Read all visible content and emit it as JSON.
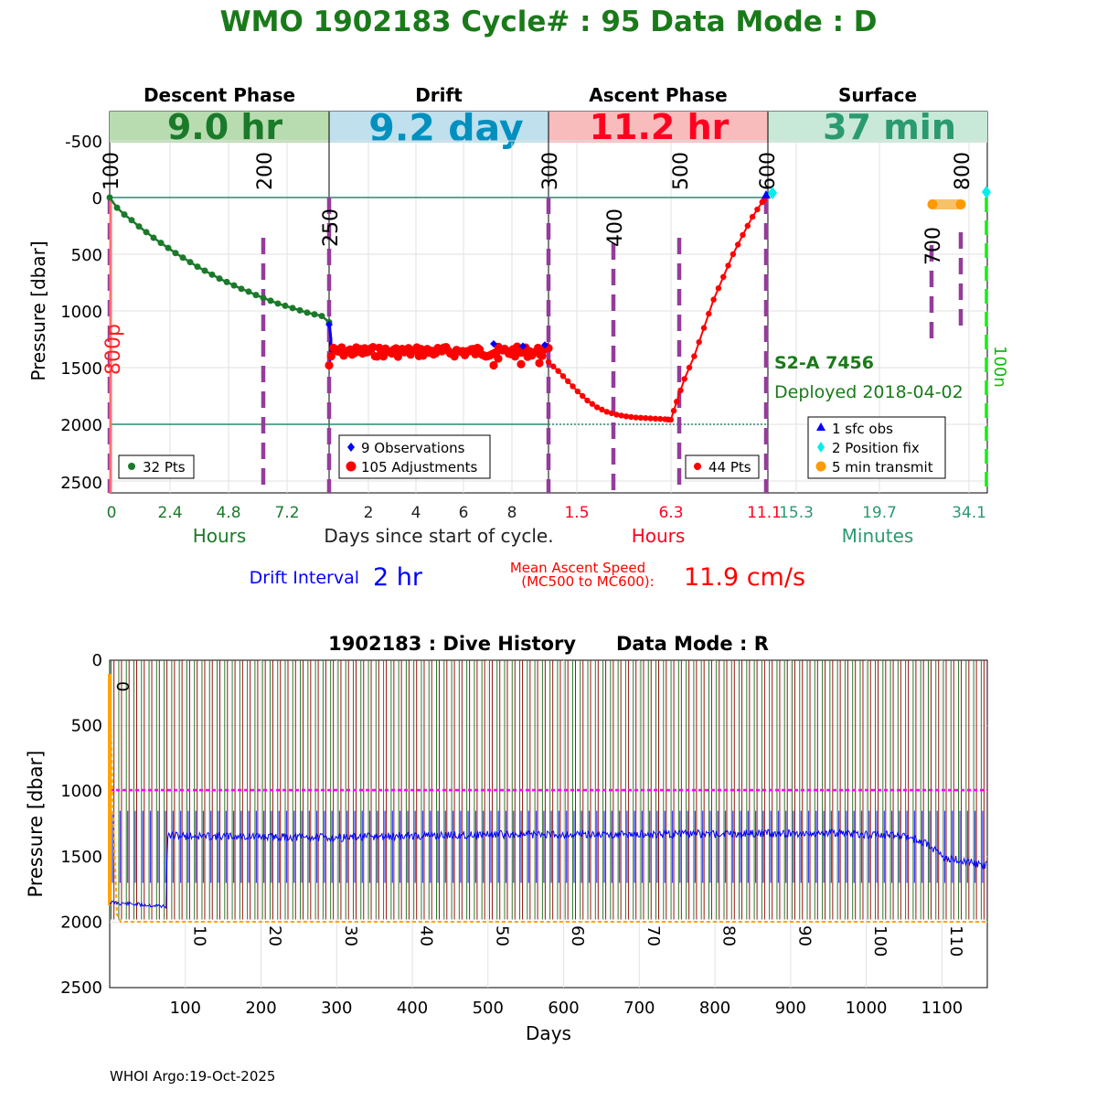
{
  "title": "WMO 1902183   Cycle# : 95   Data Mode : D",
  "footer": "WHOI Argo:19-Oct-2025",
  "colors": {
    "title": "#1a7a1a",
    "descent": "#1a7a2a",
    "drift": "#0000ff",
    "adjust": "#ff0000",
    "ascent": "#ff0000",
    "minutes": "#2a9a70",
    "marker": "#943c9c",
    "history_drift": "#0000ff",
    "history_green": "#1a7a1a",
    "history_red": "#a01010",
    "history_orange": "#ffa500",
    "ref_magenta": "#ff00ff"
  },
  "cycle_chart": {
    "phases": [
      {
        "name": "Descent Phase",
        "duration": "9.0 hr",
        "band_color": "#b8dcb0",
        "text_color": "#1a7a2a"
      },
      {
        "name": "Drift",
        "duration": "9.2 day",
        "band_color": "#bfe0ec",
        "text_color": "#0090c0"
      },
      {
        "name": "Ascent Phase",
        "duration": "11.2 hr",
        "band_color": "#f8bcbc",
        "text_color": "#ff0020"
      },
      {
        "name": "Surface",
        "duration": "37 min",
        "band_color": "#c8e8d8",
        "text_color": "#2a9a70"
      }
    ],
    "ylabel": "Pressure [dbar]",
    "y_ticks": [
      "-500",
      "0",
      "500",
      "1000",
      "1500",
      "2000",
      "2500"
    ],
    "ylim": [
      -700,
      2600
    ],
    "x_groups": [
      {
        "ticks": [
          "0",
          "2.4",
          "4.8",
          "7.2"
        ],
        "unit": "Hours"
      },
      {
        "ticks": [
          "2",
          "4",
          "6",
          "8"
        ],
        "unit": "Days since start of cycle."
      },
      {
        "ticks": [
          "1.5",
          "6.3",
          "11.1"
        ],
        "unit": "Hours"
      },
      {
        "ticks": [
          "15.3",
          "19.7",
          "34.1"
        ],
        "unit": "Minutes"
      }
    ],
    "mission_labels": [
      "100",
      "200",
      "250",
      "300",
      "400",
      "500",
      "600",
      "700",
      "800"
    ],
    "side_labels": {
      "left": "800p",
      "right": "100n"
    },
    "legends": {
      "descent": "32 Pts",
      "drift_obs": "9 Observations",
      "drift_adj": "105 Adjustments",
      "ascent": "44 Pts",
      "surface": [
        "1 sfc obs",
        "2 Position fix",
        "5 min transmit"
      ]
    },
    "float_model": "S2-A 7456",
    "deployed": "Deployed 2018-04-02",
    "descent_profile": [
      [
        0,
        0
      ],
      [
        0.3,
        90
      ],
      [
        0.6,
        150
      ],
      [
        0.9,
        200
      ],
      [
        1.2,
        255
      ],
      [
        1.5,
        305
      ],
      [
        1.8,
        355
      ],
      [
        2.1,
        400
      ],
      [
        2.4,
        445
      ],
      [
        2.7,
        490
      ],
      [
        3.0,
        530
      ],
      [
        3.3,
        570
      ],
      [
        3.6,
        610
      ],
      [
        3.9,
        645
      ],
      [
        4.2,
        680
      ],
      [
        4.5,
        715
      ],
      [
        4.8,
        745
      ],
      [
        5.1,
        775
      ],
      [
        5.4,
        805
      ],
      [
        5.7,
        830
      ],
      [
        6.0,
        860
      ],
      [
        6.3,
        885
      ],
      [
        6.6,
        910
      ],
      [
        6.9,
        935
      ],
      [
        7.2,
        955
      ],
      [
        7.5,
        975
      ],
      [
        7.8,
        995
      ],
      [
        8.1,
        1015
      ],
      [
        8.4,
        1030
      ],
      [
        8.7,
        1045
      ],
      [
        9.0,
        1100
      ]
    ],
    "ascent_profile": [
      [
        0,
        1450
      ],
      [
        0.5,
        1530
      ],
      [
        1.0,
        1620
      ],
      [
        1.5,
        1710
      ],
      [
        2.0,
        1790
      ],
      [
        2.5,
        1850
      ],
      [
        3.0,
        1890
      ],
      [
        3.5,
        1915
      ],
      [
        4.0,
        1930
      ],
      [
        4.5,
        1940
      ],
      [
        5.0,
        1945
      ],
      [
        5.5,
        1950
      ],
      [
        6.0,
        1955
      ],
      [
        6.3,
        1960
      ],
      [
        6.6,
        1800
      ],
      [
        7.0,
        1600
      ],
      [
        7.5,
        1400
      ],
      [
        8.0,
        1150
      ],
      [
        8.5,
        900
      ],
      [
        9.0,
        700
      ],
      [
        9.5,
        500
      ],
      [
        10.0,
        330
      ],
      [
        10.5,
        170
      ],
      [
        11.0,
        40
      ],
      [
        11.2,
        0
      ]
    ]
  },
  "info": {
    "drift_interval_label": "Drift Interval",
    "drift_interval_value": "2 hr",
    "ascent_speed_label_1": "Mean Ascent Speed",
    "ascent_speed_label_2": "(MC500 to MC600):",
    "ascent_speed_value": "11.9 cm/s"
  },
  "chart_data": {
    "type": "line",
    "title": "1902183 : Dive History      Data Mode : R",
    "xlabel": "Days",
    "ylabel": "Pressure [dbar]",
    "x_ticks": [
      "100",
      "200",
      "300",
      "400",
      "500",
      "600",
      "700",
      "800",
      "900",
      "1000",
      "1100"
    ],
    "y_ticks": [
      "0",
      "500",
      "1000",
      "1500",
      "2000",
      "2500"
    ],
    "xlim": [
      0,
      1160
    ],
    "ylim": [
      0,
      2500
    ],
    "cycle_labels": [
      "0",
      "10",
      "20",
      "30",
      "40",
      "50",
      "60",
      "70",
      "80",
      "90",
      "100",
      "110"
    ],
    "reference_depth": 1000,
    "profile_depth": 2000,
    "drift_depth_segments": [
      [
        0,
        1850
      ],
      [
        75,
        1880
      ],
      [
        76,
        1340
      ],
      [
        300,
        1355
      ],
      [
        500,
        1330
      ],
      [
        700,
        1330
      ],
      [
        950,
        1320
      ],
      [
        1050,
        1340
      ],
      [
        1080,
        1400
      ],
      [
        1100,
        1500
      ],
      [
        1160,
        1570
      ]
    ]
  }
}
